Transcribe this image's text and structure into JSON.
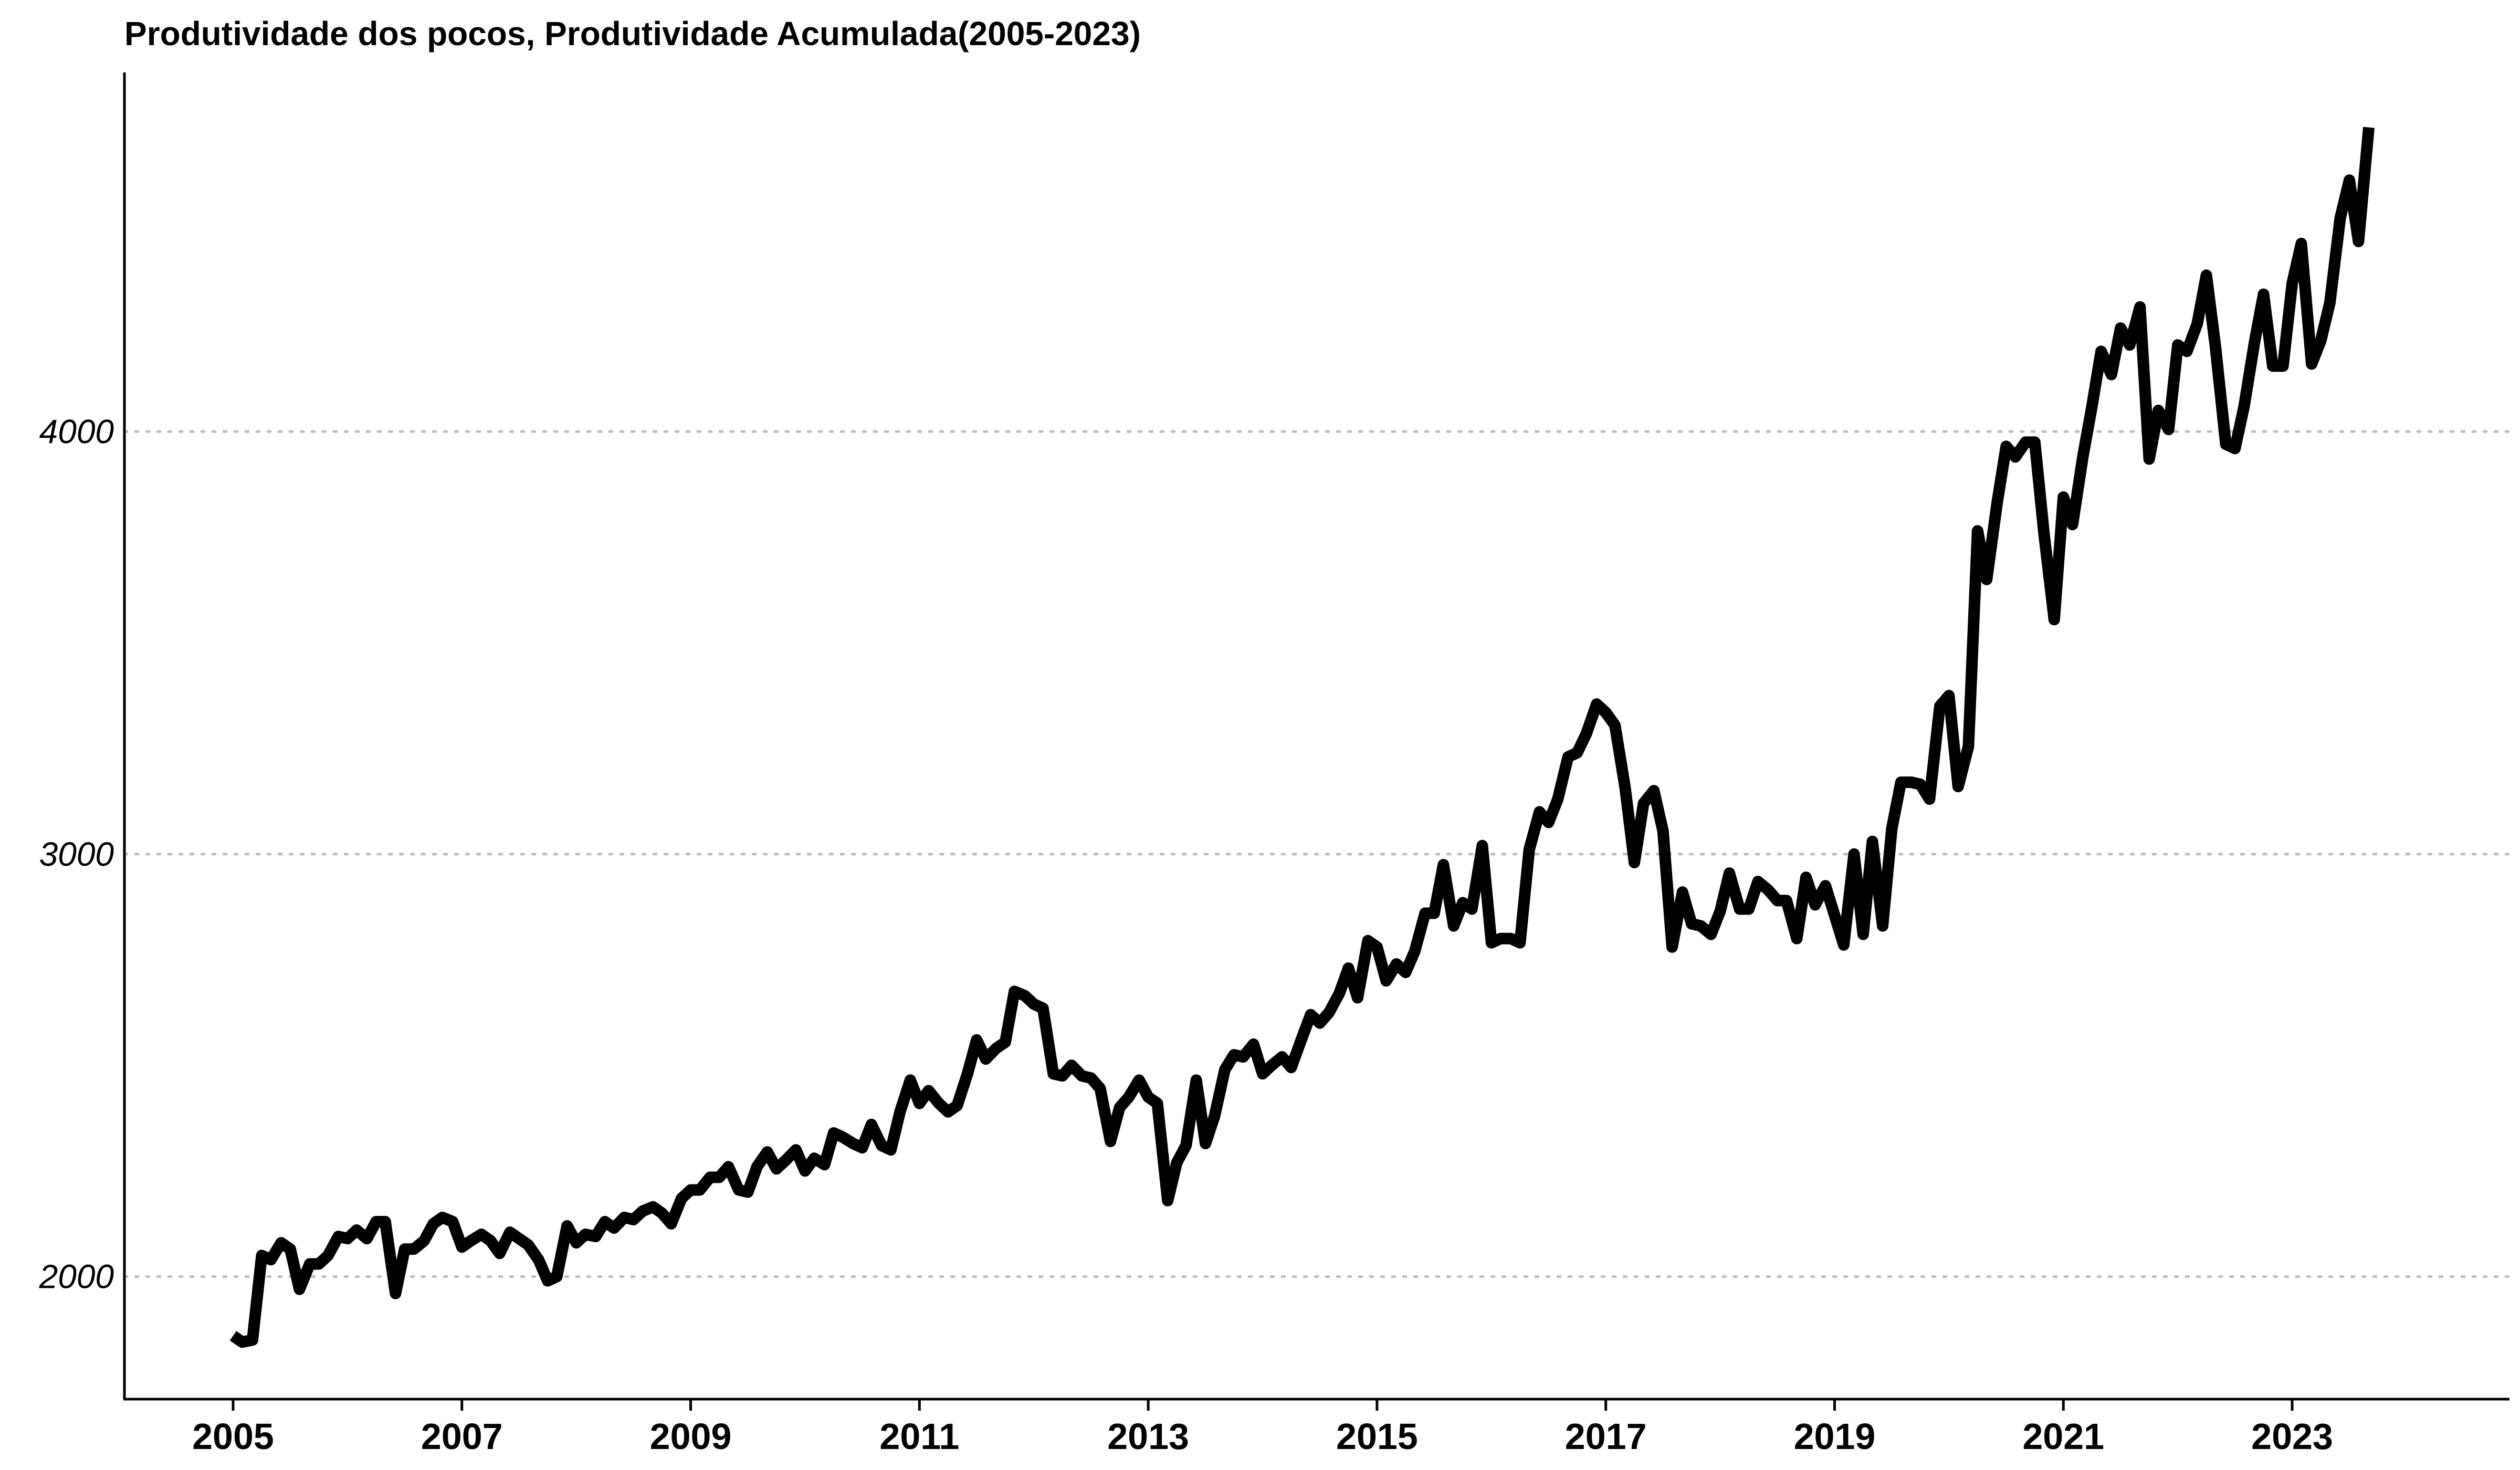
{
  "chart_data": {
    "type": "line",
    "title": "Produtividade dos pocos, Produtividade Acumulada(2005-2023)",
    "xlabel": "",
    "ylabel": "",
    "xlim": [
      2004.05,
      2024.9
    ],
    "ylim": [
      1710,
      4850
    ],
    "x_ticks": [
      2005,
      2007,
      2009,
      2011,
      2013,
      2015,
      2017,
      2019,
      2021,
      2023
    ],
    "x_tick_labels": [
      "2005",
      "2007",
      "2009",
      "2011",
      "2013",
      "2015",
      "2017",
      "2019",
      "2021",
      "2023"
    ],
    "y_ticks": [
      2000,
      3000,
      4000
    ],
    "y_tick_labels": [
      "2000",
      "3000",
      "4000"
    ],
    "grid": "horizontal dotted",
    "legend": "none",
    "series": [
      {
        "color": "#000000",
        "x": [
          2005.0,
          2005.08,
          2005.17,
          2005.25,
          2005.33,
          2005.42,
          2005.5,
          2005.58,
          2005.67,
          2005.75,
          2005.83,
          2005.92,
          2006.0,
          2006.08,
          2006.17,
          2006.25,
          2006.33,
          2006.42,
          2006.5,
          2006.58,
          2006.67,
          2006.75,
          2006.83,
          2006.92,
          2007.0,
          2007.08,
          2007.17,
          2007.25,
          2007.33,
          2007.42,
          2007.5,
          2007.58,
          2007.67,
          2007.75,
          2007.83,
          2007.92,
          2008.0,
          2008.08,
          2008.17,
          2008.25,
          2008.33,
          2008.42,
          2008.5,
          2008.58,
          2008.67,
          2008.75,
          2008.83,
          2008.92,
          2009.0,
          2009.08,
          2009.17,
          2009.25,
          2009.33,
          2009.42,
          2009.5,
          2009.58,
          2009.67,
          2009.75,
          2009.83,
          2009.92,
          2010.0,
          2010.08,
          2010.17,
          2010.25,
          2010.33,
          2010.42,
          2010.5,
          2010.58,
          2010.67,
          2010.75,
          2010.83,
          2010.92,
          2011.0,
          2011.08,
          2011.17,
          2011.25,
          2011.33,
          2011.42,
          2011.5,
          2011.58,
          2011.67,
          2011.75,
          2011.83,
          2011.92,
          2012.0,
          2012.08,
          2012.17,
          2012.25,
          2012.33,
          2012.42,
          2012.5,
          2012.58,
          2012.67,
          2012.75,
          2012.83,
          2012.92,
          2013.0,
          2013.08,
          2013.17,
          2013.25,
          2013.33,
          2013.42,
          2013.5,
          2013.58,
          2013.67,
          2013.75,
          2013.83,
          2013.92,
          2014.0,
          2014.08,
          2014.17,
          2014.25,
          2014.33,
          2014.42,
          2014.5,
          2014.58,
          2014.67,
          2014.75,
          2014.83,
          2014.92,
          2015.0,
          2015.08,
          2015.17,
          2015.25,
          2015.33,
          2015.42,
          2015.5,
          2015.58,
          2015.67,
          2015.75,
          2015.83,
          2015.92,
          2016.0,
          2016.08,
          2016.17,
          2016.25,
          2016.33,
          2016.42,
          2016.5,
          2016.58,
          2016.67,
          2016.75,
          2016.83,
          2016.92,
          2017.0,
          2017.08,
          2017.17,
          2017.25,
          2017.33,
          2017.42,
          2017.5,
          2017.58,
          2017.67,
          2017.75,
          2017.83,
          2017.92,
          2018.0,
          2018.08,
          2018.17,
          2018.25,
          2018.33,
          2018.42,
          2018.5,
          2018.58,
          2018.67,
          2018.75,
          2018.83,
          2018.92,
          2019.0,
          2019.08,
          2019.17,
          2019.25,
          2019.33,
          2019.42,
          2019.5,
          2019.58,
          2019.67,
          2019.75,
          2019.83,
          2019.92,
          2020.0,
          2020.08,
          2020.17,
          2020.25,
          2020.33,
          2020.42,
          2020.5,
          2020.58,
          2020.67,
          2020.75,
          2020.83,
          2020.92,
          2021.0,
          2021.08,
          2021.17,
          2021.25,
          2021.33,
          2021.42,
          2021.5,
          2021.58,
          2021.67,
          2021.75,
          2021.83,
          2021.92,
          2022.0,
          2022.08,
          2022.17,
          2022.25,
          2022.33,
          2022.42,
          2022.5,
          2022.58,
          2022.67,
          2022.75,
          2022.83,
          2022.92,
          2023.0,
          2023.08,
          2023.17,
          2023.25,
          2023.33,
          2023.42,
          2023.5,
          2023.58,
          2023.67
        ],
        "values": [
          1860,
          1845,
          1850,
          2050,
          2040,
          2080,
          2065,
          1970,
          2030,
          2030,
          2050,
          2095,
          2090,
          2110,
          2090,
          2130,
          2130,
          1960,
          2065,
          2065,
          2085,
          2125,
          2140,
          2130,
          2070,
          2085,
          2100,
          2085,
          2055,
          2105,
          2090,
          2075,
          2040,
          1990,
          2000,
          2120,
          2080,
          2100,
          2095,
          2130,
          2115,
          2140,
          2135,
          2155,
          2165,
          2150,
          2125,
          2185,
          2205,
          2205,
          2235,
          2235,
          2260,
          2205,
          2200,
          2260,
          2295,
          2255,
          2275,
          2300,
          2250,
          2280,
          2265,
          2340,
          2330,
          2315,
          2305,
          2360,
          2310,
          2300,
          2390,
          2465,
          2410,
          2440,
          2410,
          2390,
          2405,
          2480,
          2560,
          2515,
          2540,
          2555,
          2675,
          2665,
          2645,
          2635,
          2480,
          2475,
          2500,
          2475,
          2470,
          2445,
          2320,
          2400,
          2425,
          2465,
          2425,
          2410,
          2180,
          2270,
          2310,
          2465,
          2315,
          2380,
          2490,
          2525,
          2520,
          2550,
          2480,
          2500,
          2520,
          2495,
          2555,
          2620,
          2600,
          2625,
          2670,
          2730,
          2660,
          2795,
          2780,
          2700,
          2740,
          2720,
          2770,
          2860,
          2860,
          2975,
          2830,
          2885,
          2870,
          3020,
          2790,
          2800,
          2800,
          2790,
          3010,
          3100,
          3075,
          3130,
          3230,
          3240,
          3285,
          3355,
          3335,
          3305,
          3155,
          2980,
          3120,
          3150,
          3055,
          2780,
          2910,
          2835,
          2830,
          2810,
          2865,
          2955,
          2870,
          2870,
          2935,
          2915,
          2890,
          2890,
          2800,
          2945,
          2880,
          2925,
          2855,
          2785,
          3000,
          2810,
          3030,
          2830,
          3060,
          3170,
          3170,
          3165,
          3130,
          3350,
          3375,
          3160,
          3255,
          3765,
          3650,
          3830,
          3965,
          3940,
          3975,
          3975,
          3760,
          3555,
          3845,
          3780,
          3940,
          4060,
          4190,
          4135,
          4245,
          4205,
          4295,
          3935,
          4050,
          4005,
          4205,
          4190,
          4255,
          4370,
          4200,
          3970,
          3960,
          4060,
          4210,
          4325,
          4155,
          4155,
          4350,
          4445,
          4160,
          4215,
          4305,
          4505,
          4595,
          4450,
          4720
        ]
      }
    ]
  }
}
